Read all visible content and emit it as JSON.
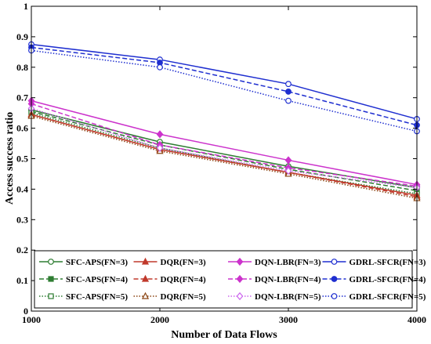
{
  "chart_data": {
    "type": "line",
    "title": "",
    "xlabel": "Number of Data Flows",
    "ylabel": "Access success ratio",
    "x": [
      1000,
      2000,
      3000,
      4000
    ],
    "xlim": [
      1000,
      4000
    ],
    "ylim": [
      0,
      1
    ],
    "x_ticks": [
      "1000",
      "2000",
      "3000",
      "4000"
    ],
    "y_ticks": [
      "0",
      "0.1",
      "0.2",
      "0.3",
      "0.4",
      "0.5",
      "0.6",
      "0.7",
      "0.8",
      "0.9",
      "1"
    ],
    "grid": false,
    "legend_position": "bottom",
    "series": [
      {
        "name": "SFC-APS(FN=3)",
        "color": "#2e7d32",
        "dash": "solid",
        "marker": "circle-open",
        "values": [
          0.66,
          0.555,
          0.475,
          0.405
        ]
      },
      {
        "name": "SFC-APS(FN=4)",
        "color": "#2e7d32",
        "dash": "dashed",
        "marker": "square",
        "values": [
          0.655,
          0.545,
          0.465,
          0.395
        ]
      },
      {
        "name": "SFC-APS(FN=5)",
        "color": "#2e7d32",
        "dash": "dotted",
        "marker": "square-open",
        "values": [
          0.65,
          0.535,
          0.455,
          0.385
        ]
      },
      {
        "name": "DQR(FN=3)",
        "color": "#c0392b",
        "dash": "solid",
        "marker": "triangle",
        "values": [
          0.645,
          0.53,
          0.455,
          0.38
        ]
      },
      {
        "name": "DQR(FN=4)",
        "color": "#c0392b",
        "dash": "dashed",
        "marker": "triangle",
        "values": [
          0.645,
          0.53,
          0.455,
          0.375
        ]
      },
      {
        "name": "DQR(FN=5)",
        "color": "#8b4513",
        "dash": "dotted",
        "marker": "triangle-open",
        "values": [
          0.64,
          0.525,
          0.45,
          0.37
        ]
      },
      {
        "name": "DQN-LBR(FN=3)",
        "color": "#cc33cc",
        "dash": "solid",
        "marker": "diamond",
        "values": [
          0.69,
          0.58,
          0.495,
          0.415
        ]
      },
      {
        "name": "DQN-LBR(FN=4)",
        "color": "#cc33cc",
        "dash": "dashed",
        "marker": "diamond",
        "values": [
          0.68,
          0.545,
          0.47,
          0.41
        ]
      },
      {
        "name": "DQN-LBR(FN=5)",
        "color": "#cc66ee",
        "dash": "dotted",
        "marker": "diamond-open",
        "values": [
          0.665,
          0.535,
          0.46,
          0.405
        ]
      },
      {
        "name": "GDRL-SFCR(FN=3)",
        "color": "#1f2fd0",
        "dash": "solid",
        "marker": "circle-open",
        "values": [
          0.875,
          0.825,
          0.745,
          0.63
        ]
      },
      {
        "name": "GDRL-SFCR(FN=4)",
        "color": "#1f2fd0",
        "dash": "dashed",
        "marker": "circle",
        "values": [
          0.865,
          0.815,
          0.72,
          0.61
        ]
      },
      {
        "name": "GDRL-SFCR(FN=5)",
        "color": "#1f2fd0",
        "dash": "dotted",
        "marker": "circle-open",
        "values": [
          0.855,
          0.8,
          0.69,
          0.59
        ]
      }
    ]
  }
}
